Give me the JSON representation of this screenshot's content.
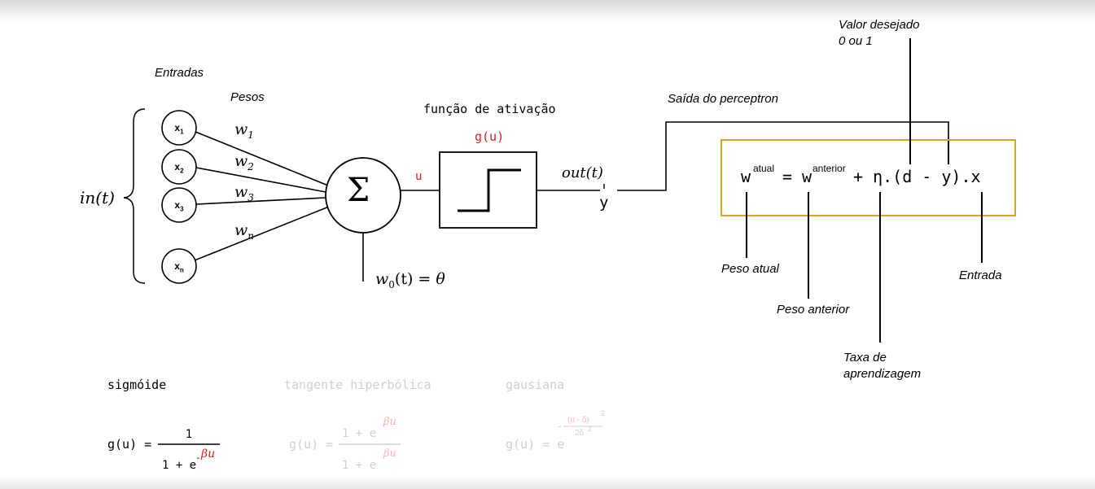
{
  "labels": {
    "entradas": "Entradas",
    "pesos": "Pesos",
    "funcao_ativacao": "função de ativação",
    "saida_perceptron": "Saída do perceptron",
    "valor_desejado_line1": "Valor desejado",
    "valor_desejado_line2": "0 ou 1",
    "peso_atual": "Peso atual",
    "peso_anterior": "Peso anterior",
    "taxa_line1": "Taxa de",
    "taxa_line2": "aprendizagem",
    "entrada": "Entrada"
  },
  "inputs": {
    "in_t": "in(t)",
    "nodes": [
      {
        "base": "x",
        "sub": "1"
      },
      {
        "base": "x",
        "sub": "2"
      },
      {
        "base": "x",
        "sub": "3"
      },
      {
        "base": "x",
        "sub": "n"
      }
    ],
    "weights": [
      {
        "base": "w",
        "sub": "1"
      },
      {
        "base": "w",
        "sub": "2"
      },
      {
        "base": "w",
        "sub": "3"
      },
      {
        "base": "w",
        "sub": "n"
      }
    ]
  },
  "summation": {
    "symbol": "Σ",
    "bias_w": "w",
    "bias_sub": "0",
    "bias_rest": "(t) =",
    "bias_theta": "θ",
    "u_label": "u"
  },
  "activation": {
    "label": "g(u)"
  },
  "output": {
    "out_t": "out(t)",
    "y": "y"
  },
  "update_rule": {
    "w1": "w",
    "sup1": "atual",
    "eq": "=",
    "w2": "w",
    "sup2": "anterior",
    "rest": "+ η.(d - y).x"
  },
  "functions": {
    "sigmoid": {
      "title": "sigmóide",
      "lhs": "g(u) =",
      "num": "1",
      "den": "1 + e",
      "exp_minus": "-",
      "exp": "βu"
    },
    "tanh": {
      "title": "tangente hiperbólica",
      "lhs": "g(u) =",
      "num": "1 + e",
      "num_exp": "βu",
      "den": "1 + e",
      "den_exp": "βu"
    },
    "gauss": {
      "title": "gausiana",
      "lhs": "g(u) = e",
      "exp_minus": "-",
      "exp_num": "(u - δ)",
      "exp_num_sup": "2",
      "exp_den": "2δ",
      "exp_den_sup": "2"
    }
  }
}
